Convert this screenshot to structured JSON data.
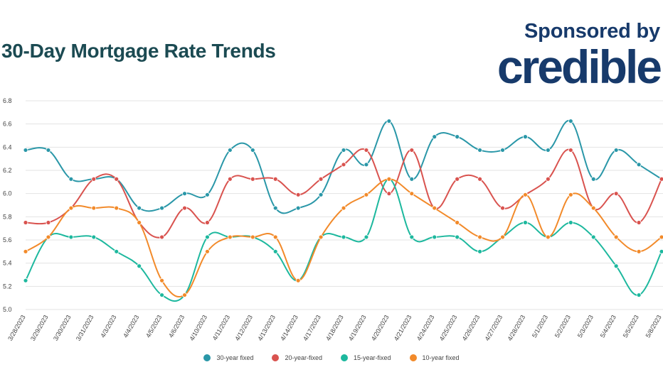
{
  "header": {
    "title": "30-Day Mortgage Rate Trends",
    "sponsor_line": "Sponsored by",
    "sponsor_logo": "credible"
  },
  "colors": {
    "title": "#1b4a52",
    "sponsor": "#173a6b",
    "grid": "#e3e3e3",
    "tick_text": "#444444"
  },
  "chart_data": {
    "type": "line",
    "categories": [
      "3/28/2023",
      "3/29/2023",
      "3/30/2023",
      "3/31/2023",
      "4/3/2023",
      "4/4/2023",
      "4/5/2023",
      "4/6/2023",
      "4/10/2023",
      "4/11/2023",
      "4/12/2023",
      "4/13/2023",
      "4/14/2023",
      "4/17/2023",
      "4/18/2023",
      "4/19/2023",
      "4/20/2023",
      "4/21/2023",
      "4/24/2023",
      "4/25/2023",
      "4/26/2023",
      "4/27/2023",
      "4/28/2023",
      "5/1/2023",
      "5/2/2023",
      "5/3/2023",
      "5/4/2023",
      "5/5/2023",
      "5/8/2023"
    ],
    "ylim": [
      5.0,
      6.8
    ],
    "yticks": [
      "5.0",
      "5.2",
      "5.4",
      "5.6",
      "5.8",
      "6.0",
      "6.2",
      "6.4",
      "6.6",
      "6.8"
    ],
    "grid": true,
    "legend_position": "bottom",
    "smooth": true,
    "series": [
      {
        "name": "30-year fixed",
        "color": "#2a97a8",
        "values": [
          6.375,
          6.375,
          6.125,
          6.125,
          6.125,
          5.875,
          5.875,
          6.0,
          5.99,
          6.375,
          6.375,
          5.875,
          5.875,
          5.99,
          6.375,
          6.25,
          6.625,
          6.125,
          6.49,
          6.49,
          6.375,
          6.375,
          6.49,
          6.375,
          6.625,
          6.125,
          6.375,
          6.25,
          6.125
        ]
      },
      {
        "name": "20-year-fixed",
        "color": "#d9534f",
        "values": [
          5.75,
          5.75,
          5.875,
          6.125,
          6.125,
          5.75,
          5.625,
          5.875,
          5.75,
          6.125,
          6.125,
          6.125,
          5.99,
          6.125,
          6.25,
          6.375,
          6.0,
          6.375,
          5.875,
          6.125,
          6.125,
          5.875,
          5.99,
          6.125,
          6.375,
          5.875,
          6.0,
          5.75,
          6.125
        ]
      },
      {
        "name": "15-year-fixed",
        "color": "#1db89e",
        "values": [
          5.25,
          5.625,
          5.625,
          5.625,
          5.5,
          5.375,
          5.125,
          5.125,
          5.625,
          5.625,
          5.625,
          5.5,
          5.25,
          5.625,
          5.625,
          5.625,
          6.125,
          5.625,
          5.625,
          5.625,
          5.5,
          5.625,
          5.75,
          5.625,
          5.75,
          5.625,
          5.375,
          5.125,
          5.5
        ]
      },
      {
        "name": "10-year fixed",
        "color": "#f28a2a",
        "values": [
          5.5,
          5.625,
          5.875,
          5.875,
          5.875,
          5.75,
          5.25,
          5.125,
          5.5,
          5.625,
          5.625,
          5.625,
          5.25,
          5.625,
          5.875,
          5.99,
          6.125,
          6.0,
          5.875,
          5.75,
          5.625,
          5.625,
          5.99,
          5.625,
          5.99,
          5.875,
          5.625,
          5.5,
          5.625
        ]
      }
    ]
  }
}
